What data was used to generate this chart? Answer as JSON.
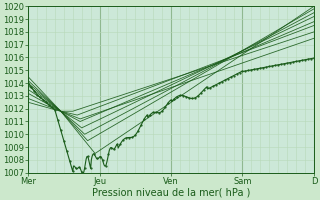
{
  "title": "",
  "xlabel": "Pression niveau de la mer( hPa )",
  "ylabel": "",
  "bg_color": "#cce8cc",
  "plot_bg_color": "#cce8d8",
  "grid_color_minor": "#b8d8b8",
  "grid_color_major": "#90b890",
  "line_color": "#1a5c1a",
  "ylim": [
    1007,
    1020
  ],
  "yticks": [
    1007,
    1008,
    1009,
    1010,
    1011,
    1012,
    1013,
    1014,
    1015,
    1016,
    1017,
    1018,
    1019,
    1020
  ],
  "xtick_labels": [
    "Mer",
    "Jeu",
    "Ven",
    "Sam",
    "D"
  ],
  "xtick_positions": [
    0,
    48,
    96,
    144,
    192
  ],
  "total_hours": 192,
  "label_fontsize": 7.0,
  "tick_fontsize": 6.0
}
